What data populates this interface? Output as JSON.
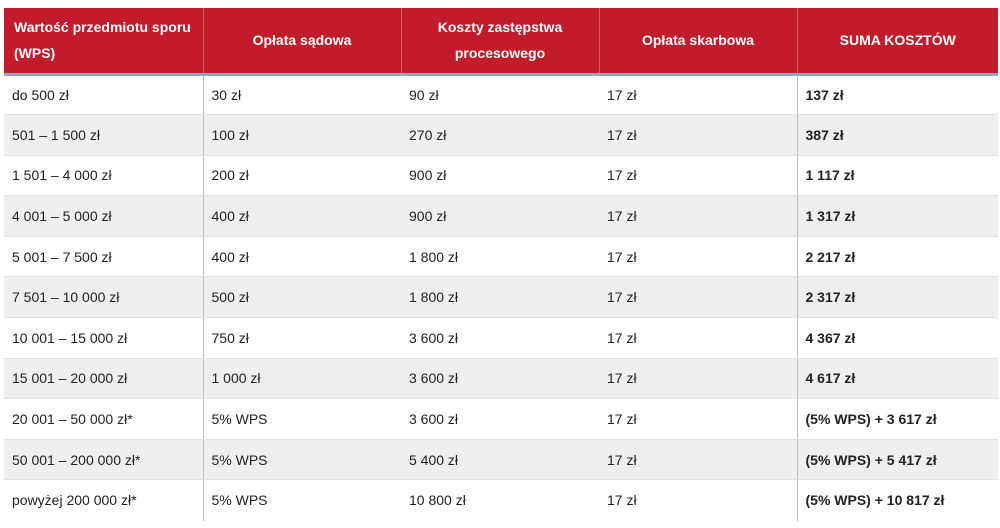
{
  "table": {
    "headers": [
      "Wartość przedmiotu sporu (WPS)",
      "Opłata sądowa",
      "Koszty zastępstwa procesowego",
      "Opłata skarbowa",
      "SUMA KOSZTÓW"
    ],
    "rows": [
      [
        "do 500 zł",
        "30 zł",
        "90 zł",
        "17 zł",
        "137 zł"
      ],
      [
        "501 – 1 500 zł",
        "100 zł",
        "270 zł",
        "17 zł",
        "387 zł"
      ],
      [
        "1 501 – 4 000 zł",
        "200 zł",
        "900 zł",
        "17 zł",
        "1 117 zł"
      ],
      [
        "4 001 – 5 000 zł",
        "400 zł",
        "900 zł",
        "17 zł",
        "1 317 zł"
      ],
      [
        "5 001 – 7 500 zł",
        "400 zł",
        "1 800 zł",
        "17 zł",
        "2 217 zł"
      ],
      [
        "7 501 – 10 000 zł",
        "500 zł",
        "1 800 zł",
        "17 zł",
        "2 317 zł"
      ],
      [
        "10 001 – 15 000 zł",
        "750 zł",
        "3 600 zł",
        "17 zł",
        "4 367 zł"
      ],
      [
        "15 001 – 20 000 zł",
        "1 000 zł",
        "3 600 zł",
        "17 zł",
        "4 617 zł"
      ],
      [
        "20 001 – 50 000 zł*",
        "5% WPS",
        "3 600 zł",
        "17 zł",
        "(5% WPS) + 3 617 zł"
      ],
      [
        "50 001 – 200 000 zł*",
        "5% WPS",
        "5 400 zł",
        "17 zł",
        "(5% WPS) + 5 417 zł"
      ],
      [
        "powyżej 200 000 zł*",
        "5% WPS",
        "10 800 zł",
        "17 zł",
        "(5% WPS) + 10 817 zł"
      ]
    ]
  },
  "colors": {
    "header_bg": "#c21b2b",
    "header_text": "#ffffff",
    "row_alt_bg": "#efefef"
  }
}
